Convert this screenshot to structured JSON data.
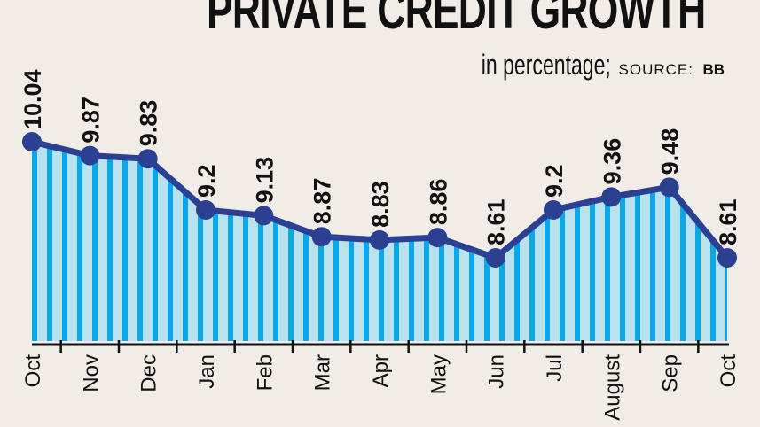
{
  "chart_data": {
    "type": "area",
    "title": "PRIVATE CREDIT GROWTH",
    "subtitle": "in percentage;",
    "source_label": "SOURCE:",
    "source": "BB",
    "categories": [
      "Oct",
      "Nov",
      "Dec",
      "Jan",
      "Feb",
      "Mar",
      "Apr",
      "May",
      "Jun",
      "Jul",
      "August",
      "Sep",
      "Oct"
    ],
    "values": [
      10.04,
      9.87,
      9.83,
      9.2,
      9.13,
      8.87,
      8.83,
      8.86,
      8.61,
      9.2,
      9.36,
      9.48,
      8.61
    ],
    "data_labels": [
      "10.04",
      "9.87",
      "9.83",
      "9.2",
      "9.13",
      "8.87",
      "8.83",
      "8.86",
      "8.61",
      "9.2",
      "9.36",
      "9.48",
      "8.61"
    ],
    "grid": false,
    "legend": "none",
    "colors": {
      "line": "#2b3f93",
      "stripe_dark": "#0aa8e8",
      "stripe_light": "#b9e2ee",
      "axis": "#111111",
      "background": "#f1ede6"
    }
  }
}
